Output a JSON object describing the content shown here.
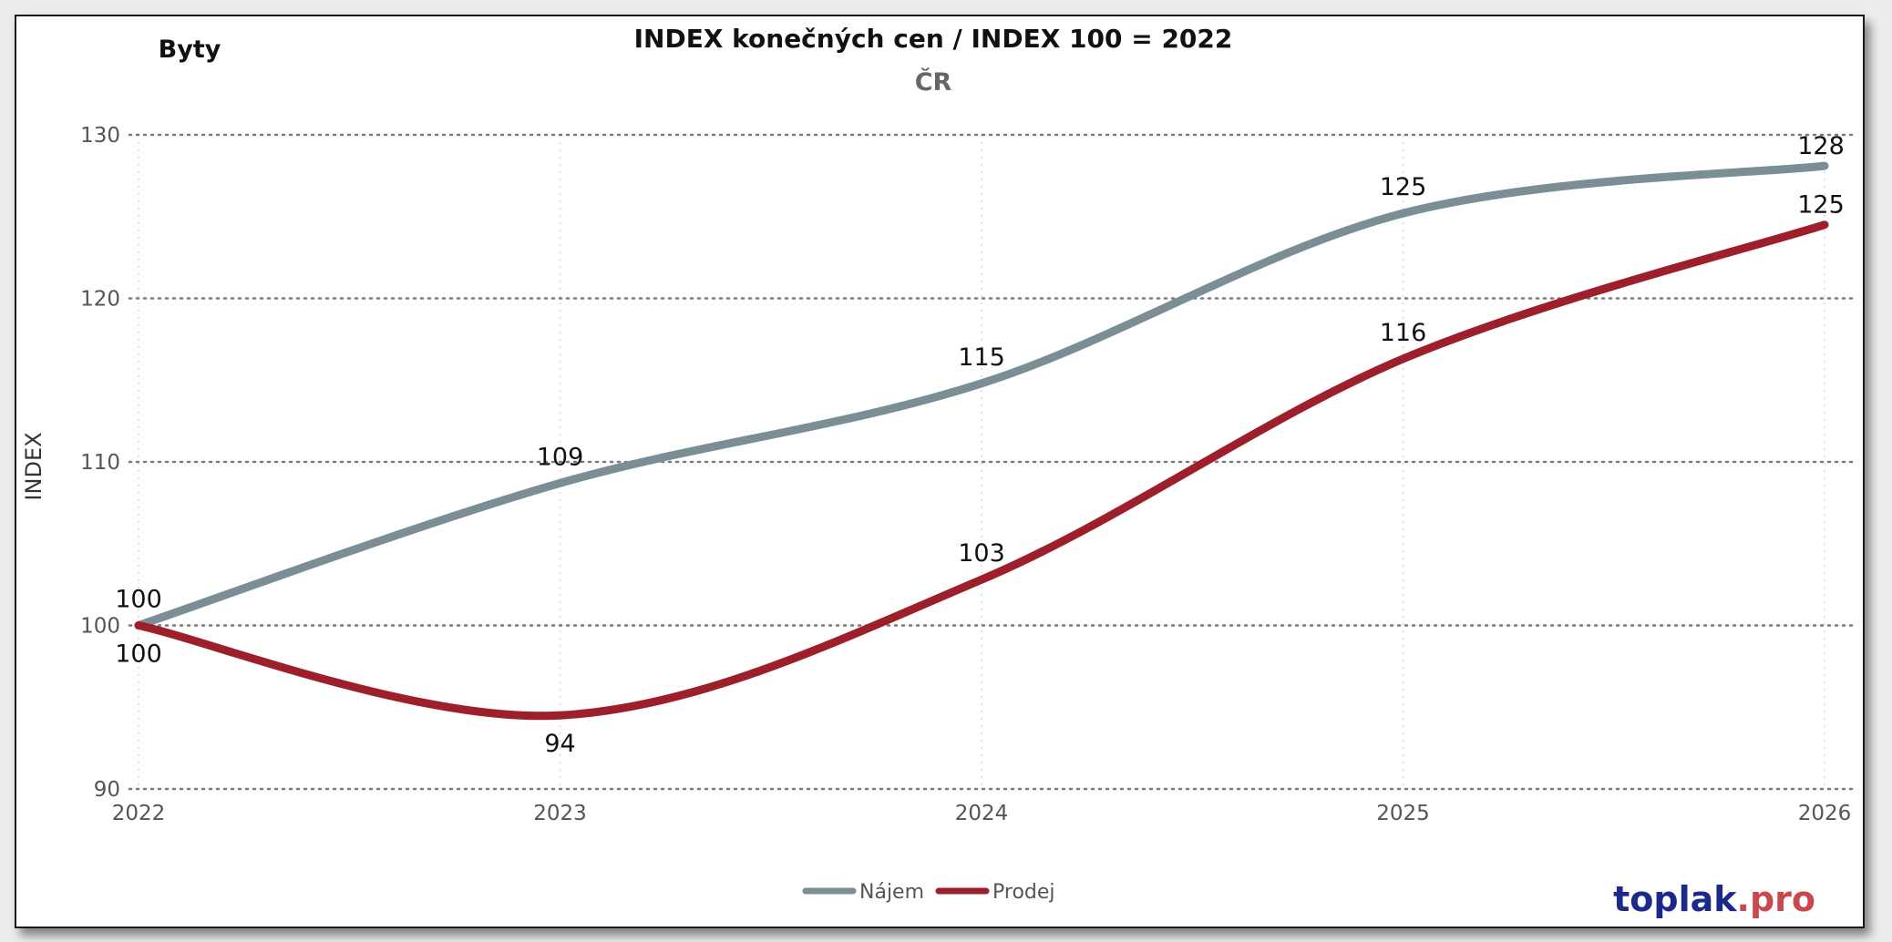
{
  "corner_label": "Byty",
  "brand": {
    "name": "toplak",
    "suffix": ".pro",
    "name_color": "#1b2a8a",
    "suffix_color": "#c8484e"
  },
  "chart_data": {
    "type": "line",
    "title": "INDEX konečných cen / INDEX 100 = 2022",
    "subtitle": "ČR",
    "xlabel": "",
    "ylabel": "INDEX",
    "x": [
      "2022",
      "2023",
      "2024",
      "2025",
      "2026"
    ],
    "ylim": [
      90,
      130
    ],
    "yticks": [
      90,
      100,
      110,
      120,
      130
    ],
    "grid": true,
    "legend": "bottom-center",
    "series": [
      {
        "name": "Nájem",
        "color": "#7b8e96",
        "values": [
          100,
          108.7,
          114.8,
          125.2,
          128.1
        ],
        "labels": [
          "100",
          "109",
          "115",
          "125",
          "128"
        ]
      },
      {
        "name": "Prodej",
        "color": "#9e1f2c",
        "values": [
          100,
          94.5,
          102.8,
          116.3,
          124.5
        ],
        "labels": [
          "100",
          "94",
          "103",
          "116",
          "125"
        ]
      }
    ]
  }
}
